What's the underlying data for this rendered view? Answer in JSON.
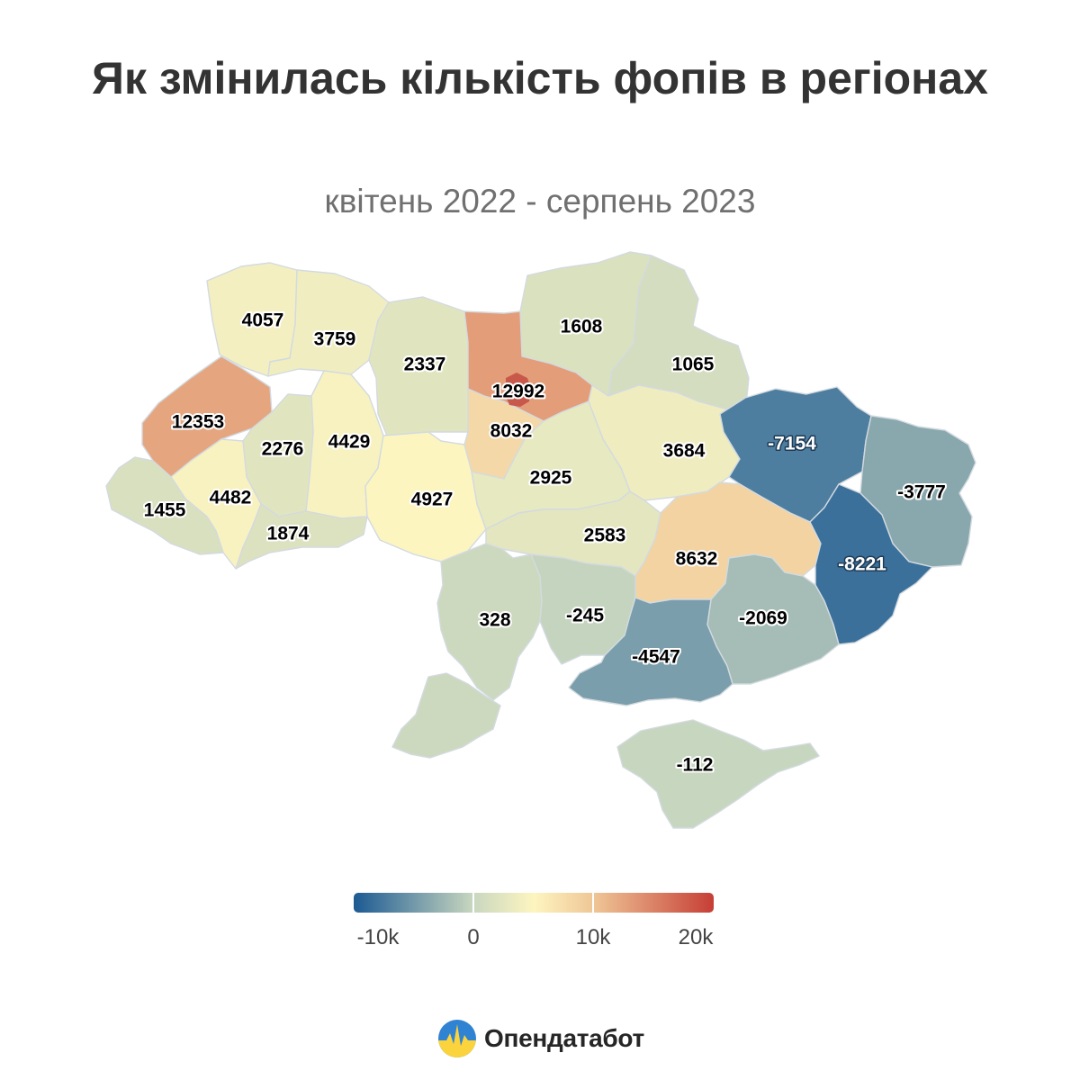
{
  "header": {
    "title": "Як змінилась кількість фопів в регіонах",
    "subtitle": "квітень 2022 - серпень 2023"
  },
  "legend": {
    "labels": [
      "-10k",
      "0",
      "10k",
      "20k"
    ],
    "stops": [
      {
        "value": -10000,
        "color": "#1c5a93"
      },
      {
        "value": 0,
        "color": "#c9d7bf"
      },
      {
        "value": 5000,
        "color": "#fdf5c0"
      },
      {
        "value": 10000,
        "color": "#efc696"
      },
      {
        "value": 20000,
        "color": "#c63e36"
      }
    ]
  },
  "brand": {
    "name": "Опендатабот"
  },
  "chart_data": {
    "type": "choropleth",
    "title": "Як змінилась кількість фопів в регіонах",
    "subtitle": "квітень 2022 - серпень 2023",
    "scale": {
      "min": -10000,
      "max": 20000,
      "ticks": [
        -10000,
        0,
        10000,
        20000
      ]
    },
    "regions": [
      {
        "label": "4057",
        "value": 4057
      },
      {
        "label": "3759",
        "value": 3759
      },
      {
        "label": "2337",
        "value": 2337
      },
      {
        "label": "1608",
        "value": 1608
      },
      {
        "label": "1065",
        "value": 1065
      },
      {
        "label": "12992",
        "value": 12992
      },
      {
        "label": "12353",
        "value": 12353
      },
      {
        "label": "2276",
        "value": 2276
      },
      {
        "label": "4429",
        "value": 4429
      },
      {
        "label": "8032",
        "value": 8032
      },
      {
        "label": "3684",
        "value": 3684
      },
      {
        "label": "-7154",
        "value": -7154
      },
      {
        "label": "4927",
        "value": 4927
      },
      {
        "label": "2925",
        "value": 2925
      },
      {
        "label": "-3777",
        "value": -3777
      },
      {
        "label": "4482",
        "value": 4482
      },
      {
        "label": "1455",
        "value": 1455
      },
      {
        "label": "1874",
        "value": 1874
      },
      {
        "label": "2583",
        "value": 2583
      },
      {
        "label": "8632",
        "value": 8632
      },
      {
        "label": "-8221",
        "value": -8221
      },
      {
        "label": "328",
        "value": 328
      },
      {
        "label": "-245",
        "value": -245
      },
      {
        "label": "-2069",
        "value": -2069
      },
      {
        "label": "-4547",
        "value": -4547
      },
      {
        "label": "-112",
        "value": -112
      }
    ]
  }
}
